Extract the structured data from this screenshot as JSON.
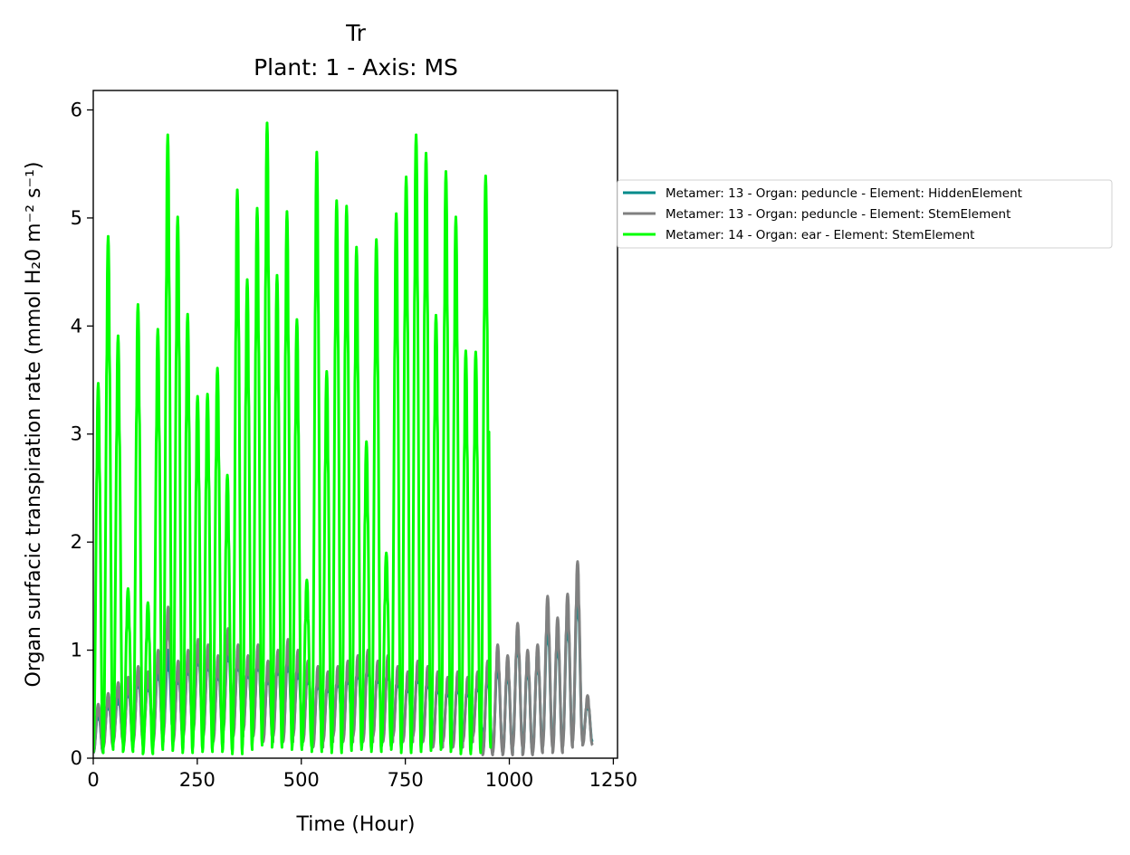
{
  "chart_data": {
    "type": "line",
    "title": "Tr",
    "subtitle": "Plant: 1 - Axis: MS",
    "xlabel": "Time (Hour)",
    "ylabel": "Organ surfacic transpiration rate (mmol H₂0 m⁻² s⁻¹)",
    "xlim": [
      0,
      1260
    ],
    "ylim": [
      0,
      6.18
    ],
    "xticks": [
      0,
      250,
      500,
      750,
      1000,
      1250
    ],
    "yticks": [
      0,
      1,
      2,
      3,
      4,
      5,
      6
    ],
    "grid": false,
    "legend_position": "outside-right",
    "series": [
      {
        "name": "Metamer: 13 - Organ: peduncle - Element: HiddenElement",
        "color": "#008b8b",
        "daily_peaks": [
          0.45,
          0.55,
          0.6,
          0.7,
          0.8,
          0.75,
          0.9,
          1.0,
          0.85,
          0.95,
          1.05,
          1.0,
          0.9,
          1.1,
          1.0,
          0.9,
          1.0,
          0.85,
          0.95,
          1.0,
          0.9,
          0.85,
          0.8,
          0.75,
          0.8,
          0.85,
          0.9,
          0.95,
          0.85,
          0.9,
          0.8,
          0.75,
          0.85,
          0.8,
          0.75,
          0.7,
          0.75,
          0.7,
          0.75,
          0.85,
          0.95,
          0.9,
          1.2,
          0.95,
          1.0,
          1.35,
          1.2,
          1.4,
          1.65,
          0.55
        ],
        "daily_troughs": [
          0.05,
          0.15,
          0.2,
          0.15,
          0.2,
          0.25,
          0.2,
          0.25,
          0.2,
          0.25,
          0.3,
          0.25,
          0.2,
          0.3,
          0.25,
          0.3,
          0.25,
          0.2,
          0.25,
          0.2,
          0.25,
          0.2,
          0.15,
          0.2,
          0.25,
          0.2,
          0.25,
          0.2,
          0.25,
          0.2,
          0.25,
          0.2,
          0.25,
          0.2,
          0.15,
          0.2,
          0.15,
          0.2,
          0.25,
          0.05,
          0.1,
          0.05,
          0.15,
          0.05,
          0.1,
          0.15,
          0.1,
          0.15,
          0.2,
          0.15
        ],
        "x_start": 0,
        "x_end": 1200
      },
      {
        "name": "Metamer: 13 - Organ: peduncle - Element: StemElement",
        "color": "#808080",
        "daily_peaks": [
          0.5,
          0.6,
          0.7,
          0.75,
          0.85,
          0.8,
          1.0,
          1.4,
          0.9,
          1.0,
          1.1,
          1.05,
          0.95,
          1.2,
          1.05,
          0.95,
          1.05,
          0.9,
          1.0,
          1.1,
          1.0,
          0.9,
          0.85,
          0.8,
          0.85,
          0.9,
          0.95,
          1.0,
          0.9,
          0.95,
          0.85,
          0.8,
          0.9,
          0.85,
          0.8,
          0.75,
          0.8,
          0.75,
          0.8,
          0.9,
          1.05,
          0.95,
          1.25,
          1.0,
          1.05,
          1.5,
          1.3,
          1.52,
          1.82,
          0.58
        ],
        "daily_troughs": [
          0.05,
          0.1,
          0.15,
          0.1,
          0.15,
          0.2,
          0.15,
          0.2,
          0.15,
          0.2,
          0.25,
          0.2,
          0.15,
          0.25,
          0.2,
          0.25,
          0.2,
          0.15,
          0.2,
          0.15,
          0.2,
          0.15,
          0.1,
          0.15,
          0.2,
          0.15,
          0.2,
          0.15,
          0.2,
          0.15,
          0.2,
          0.15,
          0.2,
          0.15,
          0.1,
          0.15,
          0.1,
          0.15,
          0.2,
          0.03,
          0.05,
          0.03,
          0.1,
          0.03,
          0.05,
          0.1,
          0.05,
          0.1,
          0.15,
          0.12
        ],
        "x_start": 0,
        "x_end": 1200
      },
      {
        "name": "Metamer: 14 - Organ: ear - Element: StemElement",
        "color": "#00ff00",
        "daily_peaks": [
          3.47,
          4.83,
          3.91,
          1.57,
          4.2,
          1.44,
          3.97,
          5.77,
          5.01,
          4.11,
          3.35,
          3.37,
          3.61,
          2.62,
          5.26,
          4.43,
          5.09,
          5.88,
          4.47,
          5.06,
          4.06,
          1.65,
          5.61,
          3.58,
          5.16,
          5.11,
          4.73,
          2.93,
          4.8,
          1.9,
          5.04,
          5.38,
          5.77,
          5.6,
          4.1,
          5.43,
          5.01,
          3.77,
          3.76,
          5.39
        ],
        "daily_troughs": [
          0.05,
          0.08,
          0.12,
          0.06,
          0.1,
          0.04,
          0.08,
          0.1,
          0.07,
          0.05,
          0.08,
          0.06,
          0.1,
          0.06,
          0.04,
          0.08,
          0.12,
          0.2,
          0.1,
          0.12,
          0.08,
          0.1,
          0.06,
          0.08,
          0.05,
          0.07,
          0.1,
          0.08,
          0.06,
          0.1,
          0.08,
          0.05,
          0.06,
          0.07,
          0.1,
          0.08,
          0.06,
          0.04,
          0.05,
          0.1
        ],
        "x_start": 0,
        "x_end": 955,
        "final_peak": 3.02
      }
    ]
  }
}
